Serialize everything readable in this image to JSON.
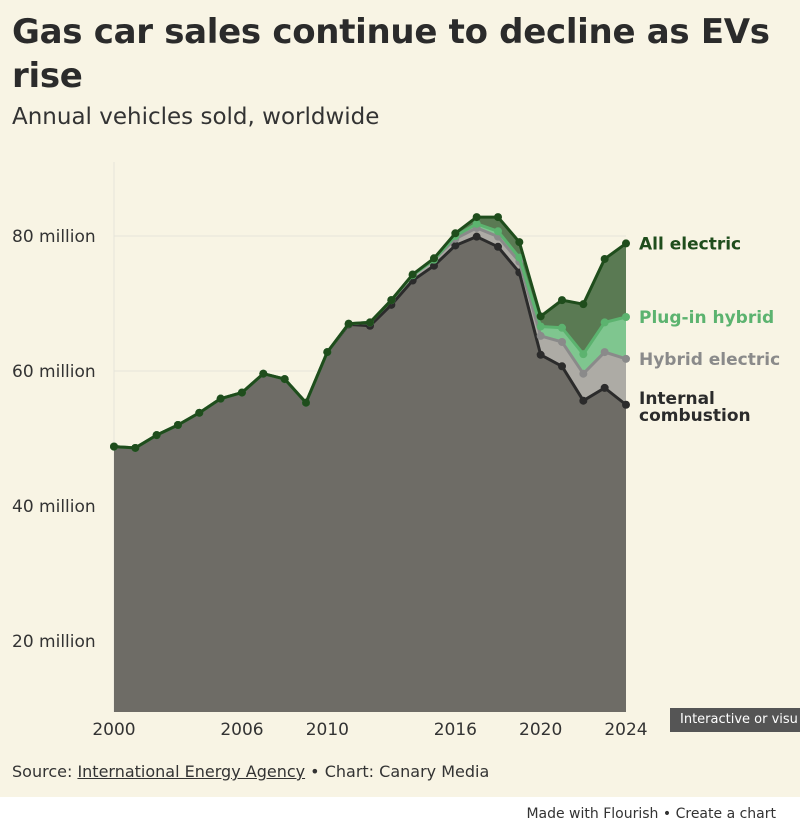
{
  "header": {
    "title": "Gas car sales continue to decline as EVs rise",
    "subtitle": "Annual vehicles sold, worldwide"
  },
  "source": {
    "prefix": "Source: ",
    "link": "International Energy Agency",
    "suffix": " • Chart: Canary Media"
  },
  "tooltip": {
    "text": "Interactive or visu"
  },
  "footer": {
    "made_with": "Made with Flourish",
    "separator": " • ",
    "create": "Create a chart"
  },
  "colors": {
    "ice_fill": "#6e6c66",
    "ice_line": "#2b2b2b",
    "hybrid_fill": "#adaba5",
    "hybrid_line": "#8a8a8a",
    "phev_fill": "#7fc68f",
    "phev_line": "#5cb36f",
    "bev_fill": "#5a7a53",
    "bev_line": "#1f4d1c",
    "grid": "#e6e4da",
    "axis_text": "#555555"
  },
  "chart_data": {
    "type": "area",
    "stacked": true,
    "x": [
      2000,
      2001,
      2002,
      2003,
      2004,
      2005,
      2006,
      2007,
      2008,
      2009,
      2010,
      2011,
      2012,
      2013,
      2014,
      2015,
      2016,
      2017,
      2018,
      2019,
      2020,
      2021,
      2022,
      2023,
      2024
    ],
    "series": [
      {
        "name": "Internal combustion",
        "values": [
          48.8,
          48.6,
          50.5,
          52.0,
          53.8,
          55.9,
          56.8,
          59.6,
          58.8,
          55.3,
          62.8,
          66.9,
          66.7,
          69.8,
          73.4,
          75.6,
          78.6,
          79.9,
          78.4,
          74.6,
          62.4,
          60.7,
          55.6,
          57.5,
          55.0
        ]
      },
      {
        "name": "Hybrid electric",
        "values": [
          0,
          0,
          0,
          0,
          0,
          0,
          0,
          0,
          0,
          0,
          0,
          0.1,
          0.5,
          0.7,
          0.8,
          0.9,
          1.0,
          1.3,
          1.5,
          1.6,
          2.8,
          3.6,
          4.0,
          5.3,
          6.8
        ]
      },
      {
        "name": "Plug-in hybrid",
        "values": [
          0,
          0,
          0,
          0,
          0,
          0,
          0,
          0,
          0,
          0,
          0,
          0,
          0,
          0,
          0,
          0,
          0.4,
          0.6,
          0.8,
          0.6,
          1.4,
          2.1,
          2.9,
          4.4,
          6.2
        ]
      },
      {
        "name": "All electric",
        "values": [
          0,
          0,
          0,
          0,
          0,
          0,
          0,
          0,
          0,
          0,
          0,
          0,
          0,
          0,
          0.1,
          0.2,
          0.4,
          1.0,
          2.1,
          2.3,
          1.5,
          4.1,
          7.4,
          9.4,
          10.9
        ]
      }
    ],
    "end_labels": [
      "All electric",
      "Plug-in hybrid",
      "Hybrid electric",
      "Internal combustion"
    ],
    "x_ticks": [
      2000,
      2006,
      2010,
      2016,
      2020,
      2024
    ],
    "y_ticks": [
      20,
      40,
      60,
      80
    ],
    "y_tick_labels": [
      "20 million",
      "40 million",
      "60 million",
      "80 million"
    ],
    "ylim": [
      10,
      90
    ],
    "xlim": [
      2000,
      2024
    ],
    "grid": true,
    "legend_placement": "end-of-line labels, right",
    "xlabel": "",
    "ylabel": ""
  }
}
